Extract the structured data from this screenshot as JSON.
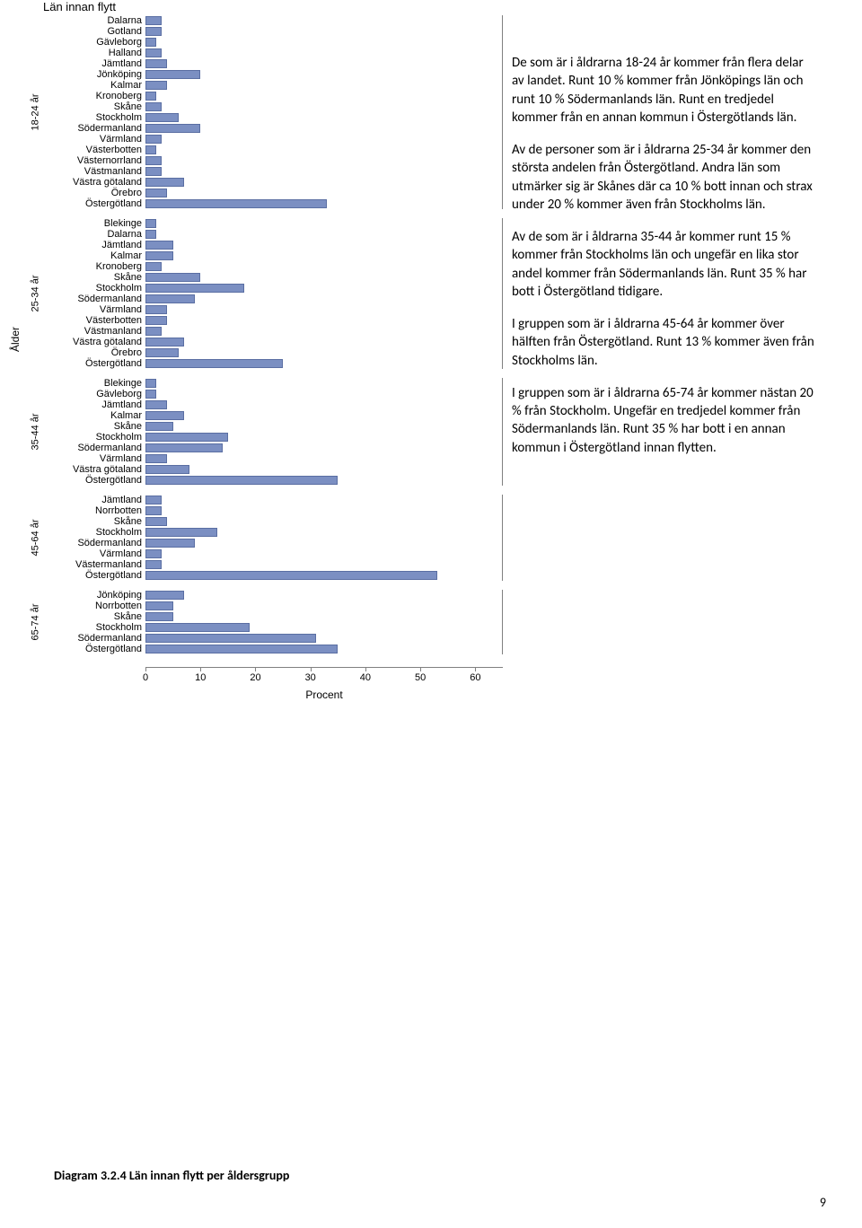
{
  "chart": {
    "title": "Län innan flytt",
    "y_axis_label": "Ålder",
    "x_axis_label": "Procent",
    "x_max": 65,
    "x_ticks": [
      0,
      10,
      20,
      30,
      40,
      50,
      60
    ],
    "bar_color": "#7b8fc2",
    "bar_border": "#5a6ea2",
    "groups": [
      {
        "label": "18-24 år",
        "items": [
          {
            "name": "Dalarna",
            "value": 3
          },
          {
            "name": "Gotland",
            "value": 3
          },
          {
            "name": "Gävleborg",
            "value": 2
          },
          {
            "name": "Halland",
            "value": 3
          },
          {
            "name": "Jämtland",
            "value": 4
          },
          {
            "name": "Jönköping",
            "value": 10
          },
          {
            "name": "Kalmar",
            "value": 4
          },
          {
            "name": "Kronoberg",
            "value": 2
          },
          {
            "name": "Skåne",
            "value": 3
          },
          {
            "name": "Stockholm",
            "value": 6
          },
          {
            "name": "Södermanland",
            "value": 10
          },
          {
            "name": "Värmland",
            "value": 3
          },
          {
            "name": "Västerbotten",
            "value": 2
          },
          {
            "name": "Västernorrland",
            "value": 3
          },
          {
            "name": "Västmanland",
            "value": 3
          },
          {
            "name": "Västra götaland",
            "value": 7
          },
          {
            "name": "Örebro",
            "value": 4
          },
          {
            "name": "Östergötland",
            "value": 33
          }
        ]
      },
      {
        "label": "25-34 år",
        "items": [
          {
            "name": "Blekinge",
            "value": 2
          },
          {
            "name": "Dalarna",
            "value": 2
          },
          {
            "name": "Jämtland",
            "value": 5
          },
          {
            "name": "Kalmar",
            "value": 5
          },
          {
            "name": "Kronoberg",
            "value": 3
          },
          {
            "name": "Skåne",
            "value": 10
          },
          {
            "name": "Stockholm",
            "value": 18
          },
          {
            "name": "Södermanland",
            "value": 9
          },
          {
            "name": "Värmland",
            "value": 4
          },
          {
            "name": "Västerbotten",
            "value": 4
          },
          {
            "name": "Västmanland",
            "value": 3
          },
          {
            "name": "Västra götaland",
            "value": 7
          },
          {
            "name": "Örebro",
            "value": 6
          },
          {
            "name": "Östergötland",
            "value": 25
          }
        ]
      },
      {
        "label": "35-44 år",
        "items": [
          {
            "name": "Blekinge",
            "value": 2
          },
          {
            "name": "Gävleborg",
            "value": 2
          },
          {
            "name": "Jämtland",
            "value": 4
          },
          {
            "name": "Kalmar",
            "value": 7
          },
          {
            "name": "Skåne",
            "value": 5
          },
          {
            "name": "Stockholm",
            "value": 15
          },
          {
            "name": "Södermanland",
            "value": 14
          },
          {
            "name": "Värmland",
            "value": 4
          },
          {
            "name": "Västra götaland",
            "value": 8
          },
          {
            "name": "Östergötland",
            "value": 35
          }
        ]
      },
      {
        "label": "45-64 år",
        "items": [
          {
            "name": "Jämtland",
            "value": 3
          },
          {
            "name": "Norrbotten",
            "value": 3
          },
          {
            "name": "Skåne",
            "value": 4
          },
          {
            "name": "Stockholm",
            "value": 13
          },
          {
            "name": "Södermanland",
            "value": 9
          },
          {
            "name": "Värmland",
            "value": 3
          },
          {
            "name": "Västermanland",
            "value": 3
          },
          {
            "name": "Östergötland",
            "value": 53
          }
        ]
      },
      {
        "label": "65-74 år",
        "items": [
          {
            "name": "Jönköping",
            "value": 7
          },
          {
            "name": "Norrbotten",
            "value": 5
          },
          {
            "name": "Skåne",
            "value": 5
          },
          {
            "name": "Stockholm",
            "value": 19
          },
          {
            "name": "Södermanland",
            "value": 31
          },
          {
            "name": "Östergötland",
            "value": 35
          }
        ]
      }
    ]
  },
  "paragraphs": [
    "De som är i åldrarna 18-24 år kommer från flera delar av landet. Runt 10 % kommer från Jönköpings län och runt 10 % Södermanlands län. Runt en tredjedel kommer från en annan kommun i Östergötlands län.",
    "Av de personer som är i åldrarna 25-34 år kommer den största andelen från Östergötland. Andra län som utmärker sig är Skånes där ca 10 % bott innan och strax under 20 % kommer även från Stockholms län.",
    "Av de som är i åldrarna 35-44 år kommer runt 15 % kommer från Stockholms län och ungefär en lika stor andel kommer från Södermanlands län. Runt 35 % har bott i Östergötland tidigare.",
    "I gruppen som är i åldrarna 45-64 år kommer över hälften från Östergötland. Runt 13 % kommer även från Stockholms län.",
    "I gruppen som är i åldrarna 65-74 år kommer nästan 20 % från Stockholm. Ungefär en tredjedel kommer från Södermanlands län. Runt 35 % har bott i en annan kommun i Östergötland innan flytten."
  ],
  "caption": "Diagram 3.2.4 Län innan flytt per åldersgrupp",
  "page_number": "9"
}
